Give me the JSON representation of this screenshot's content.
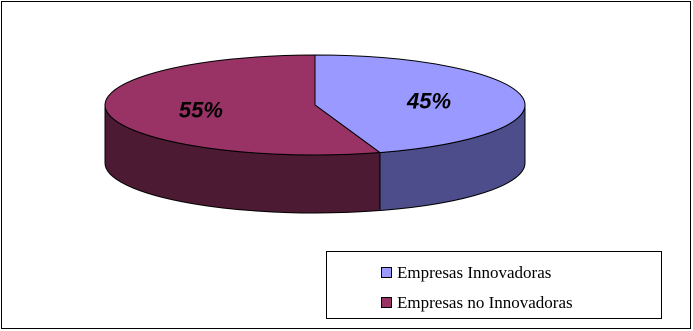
{
  "chart_data": {
    "type": "pie",
    "style": "3d",
    "categories": [
      "Empresas Innovadoras",
      "Empresas no Innovadoras"
    ],
    "values": [
      45,
      55
    ],
    "data_labels": [
      "45%",
      "55%"
    ],
    "colors": {
      "Empresas Innovadoras": {
        "top": "#9999ff",
        "side": "#4d4d8c"
      },
      "Empresas no Innovadoras": {
        "top": "#993366",
        "side": "#4d1a33"
      }
    },
    "legend": {
      "placement": "bottom-right",
      "entries": [
        "Empresas Innovadoras",
        "Empresas no Innovadoras"
      ]
    }
  }
}
